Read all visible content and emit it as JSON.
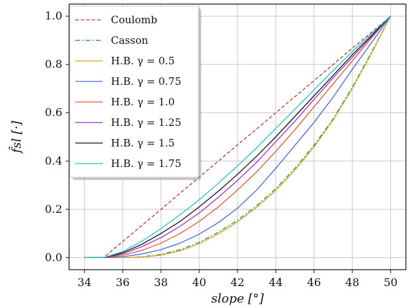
{
  "chart_data": {
    "type": "line",
    "xlabel": "slope [°]",
    "ylabel": "f̂sl [·]",
    "xlim": [
      33.2,
      50.8
    ],
    "ylim": [
      -0.05,
      1.05
    ],
    "xticks": [
      34,
      36,
      38,
      40,
      42,
      44,
      46,
      48,
      50
    ],
    "yticks": [
      0.0,
      0.2,
      0.4,
      0.6,
      0.8,
      1.0
    ],
    "xtick_labels": [
      "34",
      "36",
      "38",
      "40",
      "42",
      "44",
      "46",
      "48",
      "50"
    ],
    "ytick_labels": [
      "0.0",
      "0.2",
      "0.4",
      "0.6",
      "0.8",
      "1.0"
    ],
    "grid": true,
    "legend_position": "top-left",
    "series": [
      {
        "name": "Coulomb",
        "color": "#c0392b",
        "dash": "dashed",
        "x": [
          34,
          35,
          36,
          37,
          38,
          39,
          40,
          41,
          42,
          43,
          44,
          45,
          46,
          47,
          48,
          49,
          50
        ],
        "y": [
          0.0,
          0.0,
          0.067,
          0.133,
          0.2,
          0.267,
          0.333,
          0.4,
          0.467,
          0.533,
          0.6,
          0.667,
          0.733,
          0.8,
          0.867,
          0.933,
          1.0
        ]
      },
      {
        "name": "Casson",
        "color": "#2e8b2e",
        "dash": "dashdot",
        "x": [
          34,
          35,
          36,
          37,
          38,
          39,
          40,
          41,
          42,
          43,
          44,
          45,
          46,
          47,
          48,
          49,
          50
        ],
        "y": [
          0.0,
          0.0,
          0.0,
          0.003,
          0.013,
          0.033,
          0.063,
          0.105,
          0.155,
          0.215,
          0.285,
          0.37,
          0.465,
          0.575,
          0.705,
          0.85,
          1.0
        ]
      },
      {
        "name": "H.B. γ = 0.5",
        "color": "#d4a62a",
        "dash": "solid",
        "x": [
          34,
          35,
          36,
          37,
          38,
          39,
          40,
          41,
          42,
          43,
          44,
          45,
          46,
          47,
          48,
          49,
          50
        ],
        "y": [
          0.0,
          0.0,
          0.0,
          0.002,
          0.01,
          0.028,
          0.057,
          0.098,
          0.148,
          0.208,
          0.278,
          0.362,
          0.458,
          0.57,
          0.7,
          0.845,
          1.0
        ]
      },
      {
        "name": "H.B. γ = 0.75",
        "color": "#4169e1",
        "dash": "solid",
        "x": [
          34,
          35,
          36,
          37,
          38,
          39,
          40,
          41,
          42,
          43,
          44,
          45,
          46,
          47,
          48,
          49,
          50
        ],
        "y": [
          0.0,
          0.0,
          0.004,
          0.015,
          0.033,
          0.06,
          0.097,
          0.145,
          0.205,
          0.28,
          0.37,
          0.465,
          0.56,
          0.665,
          0.78,
          0.89,
          1.0
        ]
      },
      {
        "name": "H.B. γ = 1.0",
        "color": "#f0542f",
        "dash": "solid",
        "x": [
          34,
          35,
          36,
          37,
          38,
          39,
          40,
          41,
          42,
          43,
          44,
          45,
          46,
          47,
          48,
          49,
          50
        ],
        "y": [
          0.0,
          0.0,
          0.01,
          0.03,
          0.06,
          0.1,
          0.15,
          0.21,
          0.28,
          0.355,
          0.44,
          0.53,
          0.625,
          0.72,
          0.815,
          0.91,
          1.0
        ]
      },
      {
        "name": "H.B. γ = 1.25",
        "color": "#9b30d9",
        "dash": "solid",
        "x": [
          34,
          35,
          36,
          37,
          38,
          39,
          40,
          41,
          42,
          43,
          44,
          45,
          46,
          47,
          48,
          49,
          50
        ],
        "y": [
          0.0,
          0.0,
          0.016,
          0.045,
          0.083,
          0.13,
          0.185,
          0.25,
          0.32,
          0.395,
          0.48,
          0.565,
          0.655,
          0.745,
          0.83,
          0.915,
          1.0
        ]
      },
      {
        "name": "H.B. γ = 1.5",
        "color": "#111111",
        "dash": "solid",
        "x": [
          34,
          35,
          36,
          37,
          38,
          39,
          40,
          41,
          42,
          43,
          44,
          45,
          46,
          47,
          48,
          49,
          50
        ],
        "y": [
          0.0,
          0.0,
          0.02,
          0.055,
          0.1,
          0.15,
          0.21,
          0.275,
          0.345,
          0.42,
          0.5,
          0.585,
          0.67,
          0.755,
          0.84,
          0.92,
          1.0
        ]
      },
      {
        "name": "H.B. γ = 1.75",
        "color": "#20c5c5",
        "dash": "solid",
        "x": [
          34,
          35,
          36,
          37,
          38,
          39,
          40,
          41,
          42,
          43,
          44,
          45,
          46,
          47,
          48,
          49,
          50
        ],
        "y": [
          0.0,
          0.0,
          0.025,
          0.068,
          0.12,
          0.178,
          0.24,
          0.308,
          0.38,
          0.455,
          0.535,
          0.615,
          0.695,
          0.775,
          0.853,
          0.928,
          1.0
        ]
      }
    ]
  }
}
